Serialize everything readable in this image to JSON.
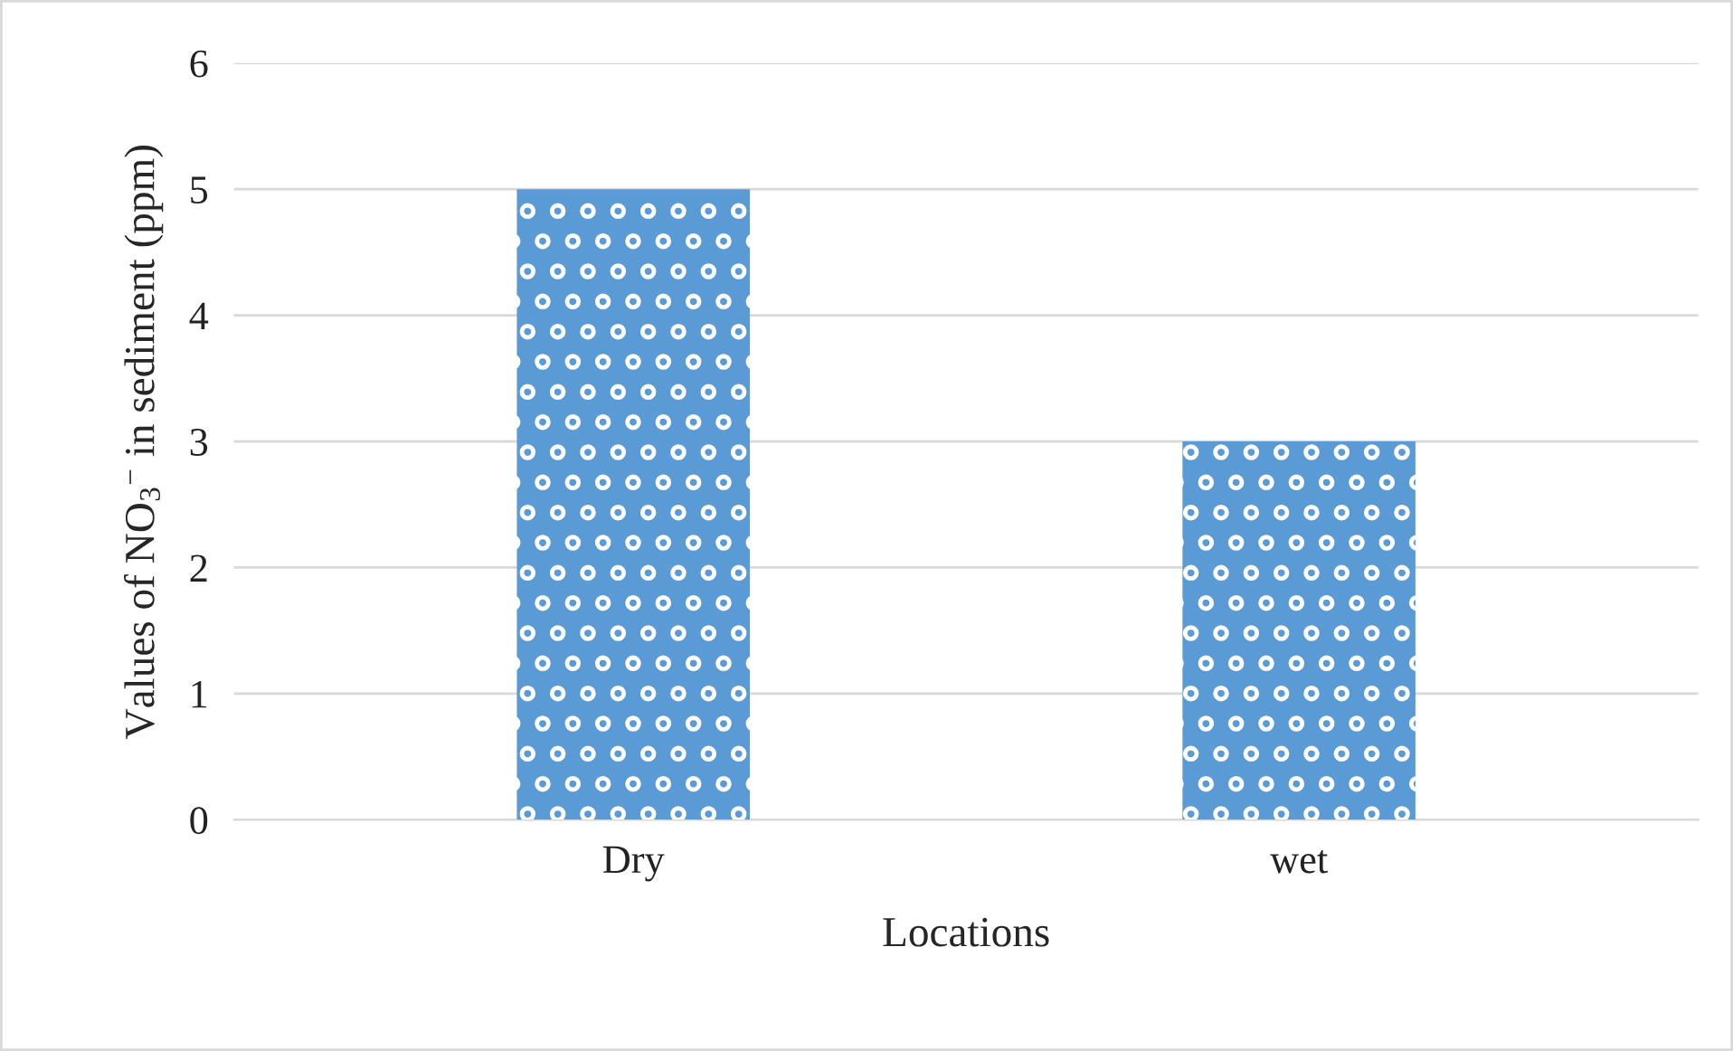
{
  "chart_data": {
    "type": "bar",
    "xlabel": "Locations",
    "ylabel": "Values of NO$_{3}$$^{−}$ in sediment (ppm)",
    "categories": [
      "Dry",
      "wet"
    ],
    "values": [
      5,
      3
    ],
    "color": "#5b9bd5",
    "ylim": [
      0,
      6
    ],
    "yticks": [
      0,
      1,
      2,
      3,
      4,
      5,
      6
    ],
    "grid": "y",
    "legend": false
  }
}
